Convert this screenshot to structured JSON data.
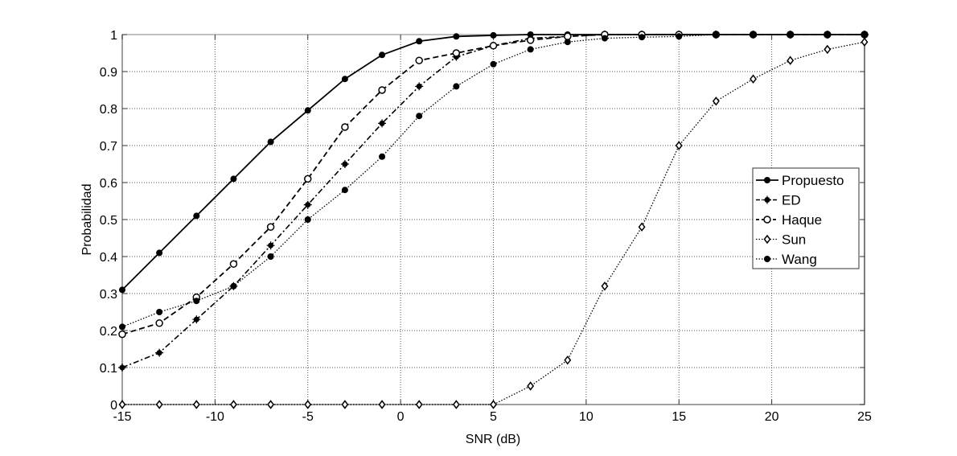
{
  "chart_data": {
    "type": "line",
    "title": "",
    "xlabel": "SNR (dB)",
    "ylabel": "Probabilidad",
    "xlim": [
      -15,
      25
    ],
    "ylim": [
      0,
      1
    ],
    "xticks": [
      -15,
      -10,
      -5,
      0,
      5,
      10,
      15,
      20,
      25
    ],
    "yticks": [
      0,
      0.1,
      0.2,
      0.3,
      0.4,
      0.5,
      0.6,
      0.7,
      0.8,
      0.9,
      1
    ],
    "ytick_labels": [
      "0",
      "0.1",
      "0.2",
      "0.3",
      "0.4",
      "0.5",
      "0.6",
      "0.7",
      "0.8",
      "0.9",
      "1"
    ],
    "grid": true,
    "legend_position": "center-right",
    "x": [
      -15,
      -13,
      -11,
      -9,
      -7,
      -5,
      -3,
      -1,
      1,
      3,
      5,
      7,
      9,
      11,
      13,
      15,
      17,
      19,
      21,
      23,
      25
    ],
    "series": [
      {
        "name": "Propuesto",
        "style": "solid",
        "marker": "filled-dot",
        "values": [
          0.31,
          0.41,
          0.51,
          0.61,
          0.71,
          0.795,
          0.88,
          0.945,
          0.982,
          0.995,
          0.998,
          1,
          1,
          1,
          1,
          1,
          1,
          1,
          1,
          1,
          1
        ]
      },
      {
        "name": "ED",
        "style": "dashdot",
        "marker": "star",
        "values": [
          0.1,
          0.14,
          0.23,
          0.32,
          0.43,
          0.54,
          0.65,
          0.76,
          0.86,
          0.94,
          0.97,
          0.99,
          0.995,
          1,
          1,
          1,
          1,
          1,
          1,
          1,
          1
        ]
      },
      {
        "name": "Haque",
        "style": "dashed",
        "marker": "open-circle",
        "values": [
          0.19,
          0.22,
          0.29,
          0.38,
          0.48,
          0.61,
          0.75,
          0.85,
          0.93,
          0.95,
          0.97,
          0.985,
          0.995,
          1,
          1,
          1,
          1,
          1,
          1,
          1,
          1
        ]
      },
      {
        "name": "Sun",
        "style": "dotted",
        "marker": "diamond",
        "values": [
          0,
          0,
          0,
          0,
          0,
          0,
          0,
          0,
          0,
          0,
          0,
          0.05,
          0.12,
          0.32,
          0.48,
          0.7,
          0.82,
          0.88,
          0.93,
          0.96,
          0.98
        ]
      },
      {
        "name": "Wang",
        "style": "dotted",
        "marker": "filled-dot",
        "values": [
          0.21,
          0.25,
          0.28,
          0.32,
          0.4,
          0.5,
          0.58,
          0.67,
          0.78,
          0.86,
          0.92,
          0.96,
          0.98,
          0.99,
          0.993,
          0.995,
          1,
          1,
          1,
          1,
          1
        ]
      }
    ]
  },
  "legend": {
    "items": [
      "Propuesto",
      "ED",
      "Haque",
      "Sun",
      "Wang"
    ]
  }
}
